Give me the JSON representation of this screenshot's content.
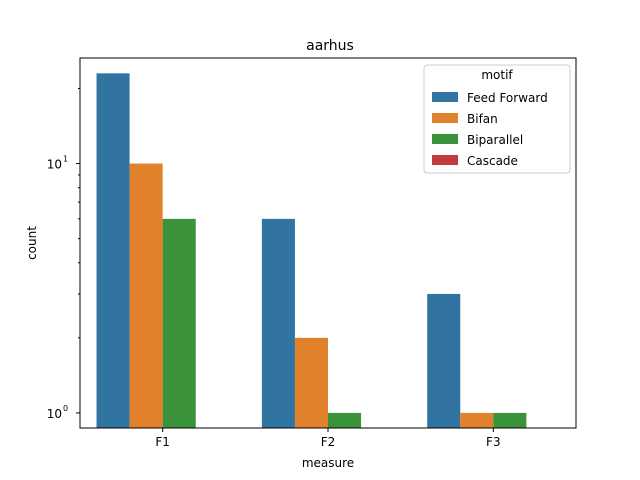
{
  "chart_data": {
    "type": "bar",
    "title": "aarhus",
    "xlabel": "measure",
    "ylabel": "count",
    "yscale": "log",
    "ylim": [
      0.87,
      26.5
    ],
    "categories": [
      "F1",
      "F2",
      "F3"
    ],
    "yticks": [
      {
        "value": 1,
        "base": "10",
        "exp": "0"
      },
      {
        "value": 10,
        "base": "10",
        "exp": "1"
      }
    ],
    "legend": {
      "title": "motif",
      "placement": "top-right"
    },
    "series": [
      {
        "name": "Feed Forward",
        "color": "#3274a1",
        "values": [
          23,
          6,
          3
        ]
      },
      {
        "name": "Bifan",
        "color": "#e1812c",
        "values": [
          10,
          2,
          1
        ]
      },
      {
        "name": "Biparallel",
        "color": "#3a923a",
        "values": [
          6,
          1,
          1
        ]
      },
      {
        "name": "Cascade",
        "color": "#c03d3e",
        "values": [
          null,
          null,
          null
        ]
      }
    ],
    "grid": false
  }
}
